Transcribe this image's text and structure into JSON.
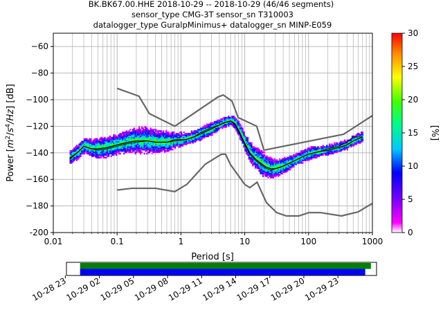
{
  "chart_data": [
    {
      "type": "heatmap",
      "title_lines": [
        "BK.BK67.00.HHE   2018-10-29 -- 2018-10-29  (46/46 segments)",
        "sensor_type CMG-3T sensor_sn T310003",
        "datalogger_type GuralpMinimus+ datalogger_sn MINP-E059"
      ],
      "xlabel": "Period [s]",
      "ylabel_parts": [
        "Power [",
        "m",
        "2",
        "/",
        "s",
        "4",
        "/Hz",
        "] [dB]"
      ],
      "x_scale": "log",
      "xlim": [
        0.01,
        1000
      ],
      "ylim": [
        -200,
        -50
      ],
      "x_ticks": [
        0.01,
        0.1,
        1,
        10,
        100,
        1000
      ],
      "x_tick_labels": [
        "0.01",
        "0.1",
        "1",
        "10",
        "100",
        "1000"
      ],
      "y_ticks": [
        -200,
        -180,
        -160,
        -140,
        -120,
        -100,
        -80,
        -60
      ],
      "y_tick_labels": [
        "-200",
        "−180",
        "−160",
        "−140",
        "−120",
        "−100",
        "−80",
        "−60"
      ],
      "grid": true,
      "colorbar": {
        "label": "[%]",
        "range": [
          0,
          30
        ],
        "ticks": [
          0,
          5,
          10,
          15,
          20,
          25,
          30
        ],
        "tick_labels": [
          "0",
          "5",
          "10",
          "15",
          "20",
          "25",
          "30"
        ]
      },
      "noise_models": [
        {
          "x": [
            0.1,
            0.22,
            0.32,
            0.8,
            3.8,
            4.6,
            6.3,
            7.9,
            15.4,
            20,
            354.8,
            1000
          ],
          "y": [
            -91.5,
            -97.4,
            -110.5,
            -120,
            -98,
            -96.5,
            -101,
            -113.5,
            -120,
            -138,
            -126,
            -112
          ]
        },
        {
          "x": [
            0.1,
            0.17,
            0.4,
            0.8,
            1.24,
            2.4,
            4.3,
            5,
            6,
            10,
            12,
            15.6,
            21.9,
            31.6,
            45,
            70,
            101,
            154,
            328,
            600,
            1000
          ],
          "y": [
            -168,
            -166.7,
            -166.7,
            -169.2,
            -163.7,
            -148.6,
            -141.1,
            -141.1,
            -149,
            -163.8,
            -166.2,
            -162.1,
            -177.5,
            -185,
            -187.5,
            -187.5,
            -185,
            -185,
            -187.5,
            -184.4,
            -178
          ]
        }
      ],
      "mean_curve": {
        "x": [
          0.018,
          0.025,
          0.03,
          0.04,
          0.05,
          0.07,
          0.1,
          0.15,
          0.2,
          0.3,
          0.4,
          0.6,
          0.8,
          1.2,
          1.6,
          2,
          3,
          4,
          5,
          6,
          7,
          8,
          10,
          12,
          15,
          18,
          22,
          26,
          30,
          40,
          60,
          80,
          100,
          150,
          200,
          300,
          400,
          500,
          700
        ],
        "y": [
          -144,
          -139,
          -135,
          -137,
          -137,
          -136,
          -134,
          -132,
          -131,
          -131,
          -132,
          -132,
          -131,
          -130,
          -128,
          -126,
          -122,
          -119,
          -117,
          -116,
          -118,
          -123,
          -133,
          -140,
          -145,
          -148,
          -151,
          -152,
          -152,
          -150,
          -146,
          -143,
          -141,
          -139,
          -138,
          -136,
          -134,
          -131,
          -128
        ]
      },
      "mode_curve": {
        "x": [
          0.018,
          0.025,
          0.03,
          0.04,
          0.05,
          0.07,
          0.1,
          0.15,
          0.2,
          0.3,
          0.4,
          0.6,
          0.8,
          1.2,
          1.6,
          2,
          3,
          4,
          5,
          6,
          7,
          8,
          10,
          12,
          15,
          18,
          22,
          26,
          30,
          40,
          60,
          80,
          100,
          150,
          200,
          300,
          400,
          500,
          700
        ],
        "y": [
          -145,
          -139,
          -135,
          -137,
          -138,
          -137,
          -135,
          -133,
          -132,
          -131,
          -132,
          -132,
          -130,
          -130,
          -128,
          -125,
          -121,
          -119,
          -117,
          -116,
          -119,
          -124,
          -134,
          -141,
          -146,
          -149,
          -152,
          -153,
          -152,
          -150,
          -146,
          -143,
          -141,
          -139,
          -137,
          -135,
          -132,
          -128,
          -128
        ]
      },
      "spread_db": [
        5,
        6,
        6,
        7,
        8,
        8,
        8,
        9,
        10,
        10,
        9,
        8,
        6,
        5,
        5,
        5,
        5,
        4,
        4,
        4,
        5,
        6,
        7,
        8,
        9,
        10,
        9,
        8,
        7,
        6,
        5,
        5,
        5,
        4,
        4,
        4,
        4,
        4,
        4
      ]
    },
    {
      "type": "timeline",
      "x_tick_labels": [
        "10-28 23",
        "10-29 02",
        "10-29 05",
        "10-29 08",
        "10-29 11",
        "10-29 14",
        "10-29 17",
        "10-29 20",
        "10-29 23"
      ],
      "x_tick_hours": [
        -1,
        2,
        5,
        8,
        11,
        14,
        17,
        20,
        23
      ],
      "x_range_hours": [
        -0.9,
        26.4
      ],
      "bars": [
        {
          "color": "#008000",
          "start_hour": 0.3,
          "end_hour": 25.9
        },
        {
          "color": "#0000ff",
          "start_hour": 0.3,
          "end_hour": 25.4
        }
      ]
    }
  ]
}
